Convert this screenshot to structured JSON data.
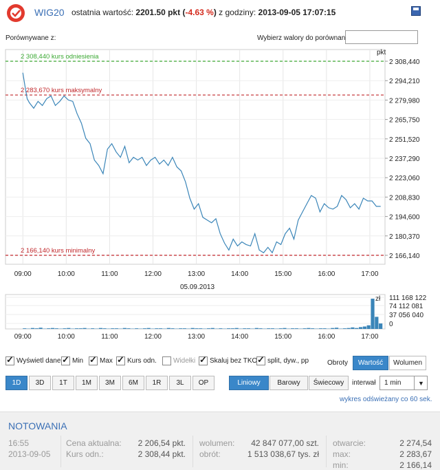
{
  "header": {
    "ticker": "WIG20",
    "last_label": "ostatnia wartość:",
    "last_value": "2201.50 pkt",
    "change_open": "(",
    "change": "-4.63 %",
    "change_close": ")",
    "time_label": "z godziny:",
    "time_value": "2013-09-05 17:07:15"
  },
  "compare": {
    "label": "Porównywane z:",
    "pick_label": "Wybierz walory do porównania",
    "pick_value": ""
  },
  "chart_data": {
    "type": "line",
    "unit_label": "pkt",
    "date_label": "05.09.2013",
    "ylim": [
      2166.14,
      2308.44
    ],
    "y_ticks": [
      "2 308,440",
      "2 294,210",
      "2 279,980",
      "2 265,750",
      "2 251,520",
      "2 237,290",
      "2 223,060",
      "2 208,830",
      "2 194,600",
      "2 180,370",
      "2 166,140"
    ],
    "x_ticks": [
      "09:00",
      "10:00",
      "11:00",
      "12:00",
      "13:00",
      "14:00",
      "15:00",
      "16:00",
      "17:00"
    ],
    "x_range_hours": [
      8.6,
      17.35
    ],
    "reference_lines": [
      {
        "label": "2 308,440 kurs odniesienia",
        "value": 2308.44,
        "color": "#3aa832"
      },
      {
        "label": "2 283,670 kurs maksymalny",
        "value": 2283.67,
        "color": "#c0262a"
      },
      {
        "label": "2 166,140 kurs minimalny",
        "value": 2166.14,
        "color": "#c0262a"
      }
    ],
    "series": [
      {
        "name": "WIG20",
        "x": [
          9.0,
          9.05,
          9.1,
          9.15,
          9.25,
          9.35,
          9.45,
          9.55,
          9.65,
          9.75,
          9.85,
          9.95,
          10.05,
          10.15,
          10.25,
          10.35,
          10.45,
          10.55,
          10.65,
          10.75,
          10.85,
          10.95,
          11.05,
          11.15,
          11.25,
          11.35,
          11.45,
          11.55,
          11.65,
          11.75,
          11.85,
          11.95,
          12.05,
          12.15,
          12.25,
          12.35,
          12.45,
          12.55,
          12.65,
          12.75,
          12.85,
          12.95,
          13.05,
          13.15,
          13.25,
          13.35,
          13.45,
          13.55,
          13.65,
          13.75,
          13.85,
          13.95,
          14.05,
          14.15,
          14.25,
          14.35,
          14.45,
          14.55,
          14.65,
          14.75,
          14.85,
          14.95,
          15.05,
          15.15,
          15.25,
          15.35,
          15.45,
          15.55,
          15.65,
          15.75,
          15.85,
          15.95,
          16.05,
          16.15,
          16.25,
          16.35,
          16.45,
          16.55,
          16.65,
          16.75,
          16.85,
          16.95,
          17.05,
          17.15,
          17.25
        ],
        "values": [
          2300,
          2290,
          2281,
          2278,
          2274,
          2279,
          2276,
          2281,
          2283,
          2276,
          2279,
          2283,
          2280,
          2279,
          2270,
          2263,
          2252,
          2248,
          2236,
          2232,
          2226,
          2244,
          2248,
          2242,
          2238,
          2246,
          2234,
          2238,
          2236,
          2238,
          2232,
          2236,
          2238,
          2233,
          2236,
          2232,
          2238,
          2231,
          2228,
          2220,
          2208,
          2200,
          2204,
          2194,
          2192,
          2190,
          2193,
          2182,
          2175,
          2170,
          2178,
          2173,
          2176,
          2174,
          2173,
          2182,
          2170,
          2168,
          2172,
          2168,
          2176,
          2174,
          2182,
          2186,
          2178,
          2192,
          2198,
          2204,
          2210,
          2208,
          2198,
          2204,
          2201,
          2200,
          2202,
          2210,
          2207,
          2201,
          2204,
          2200,
          2208,
          2206,
          2206,
          2202,
          2202
        ]
      }
    ]
  },
  "volume_data": {
    "y_ticks": [
      "111 168 122",
      "74 112 081",
      "37 056 040",
      "0"
    ],
    "unit_label": "zł",
    "max": 111168122,
    "bars": [
      2,
      1,
      3,
      2,
      4,
      1,
      2,
      3,
      2,
      1,
      2,
      3,
      1,
      2,
      2,
      3,
      1,
      2,
      1,
      3,
      2,
      1,
      2,
      2,
      1,
      3,
      2,
      1,
      2,
      1,
      2,
      3,
      1,
      2,
      2,
      1,
      3,
      2,
      1,
      2,
      2,
      1,
      3,
      2,
      2,
      1,
      2,
      3,
      1,
      2,
      1,
      2,
      2,
      3,
      1,
      2,
      2,
      1,
      3,
      2,
      1,
      2,
      2,
      1,
      2,
      3,
      1,
      2,
      2,
      1,
      2,
      3,
      2,
      1,
      2,
      2,
      1,
      3,
      4,
      1,
      2,
      3,
      5,
      3,
      6,
      8,
      12,
      100,
      40,
      18
    ]
  },
  "controls": {
    "show_data": "Wyświetl dane",
    "min": "Min",
    "max": "Max",
    "ref": "Kurs odn.",
    "fork": "Widełki",
    "scale": "Skaluj bez TKO",
    "split": "split, dyw., pp",
    "value_tabs": [
      "Obroty",
      "Wartość",
      "Wolumen"
    ],
    "ranges": [
      "1D",
      "3D",
      "1T",
      "1M",
      "3M",
      "6M",
      "1R",
      "3L",
      "OP"
    ],
    "chart_types": [
      "Liniowy",
      "Barowy",
      "Świecowy"
    ],
    "interval_label": "interwał",
    "interval_value": "1 min",
    "refresh_note": "wykres odświeżany co 60 sek."
  },
  "quotes": {
    "title": "NOTOWANIA",
    "time": "16:55",
    "date": "2013-09-05",
    "current_label": "Cena aktualna:",
    "current_value": "2 206,54 pkt.",
    "ref_label": "Kurs odn.:",
    "ref_value": "2 308,44 pkt.",
    "volume_label": "wolumen:",
    "volume_value": "42 847 077,00 szt.",
    "turnover_label": "obrót:",
    "turnover_value": "1 513 038,67 tys. zł",
    "open_label": "otwarcie:",
    "open_value": "2 274,54",
    "max_label": "max:",
    "max_value": "2 283,67",
    "min_label": "min:",
    "min_value": "2 166,14"
  }
}
